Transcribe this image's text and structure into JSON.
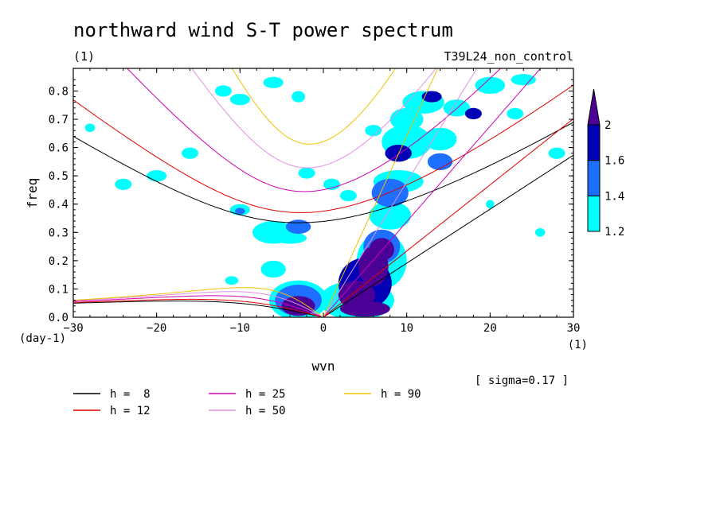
{
  "chart_data": {
    "type": "heatmap",
    "title": "northward wind S-T power spectrum",
    "subtitle_left": "(1)",
    "subtitle_right": "T39L24_non_control",
    "xlabel": "wvn",
    "ylabel": "freq",
    "x_unit": "(1)",
    "y_unit": "(day-1)",
    "xlim": [
      -30,
      30
    ],
    "ylim": [
      0,
      0.88
    ],
    "xticks": [
      -30,
      -20,
      -10,
      0,
      10,
      20,
      30
    ],
    "yticks": [
      0.0,
      0.1,
      0.2,
      0.3,
      0.4,
      0.5,
      0.6,
      0.7,
      0.8
    ],
    "ytick_labels": [
      "0.0",
      "0.1",
      "0.2",
      "0.3",
      "0.4",
      "0.5",
      "0.6",
      "0.7",
      "0.8"
    ],
    "note": "[ sigma=0.17 ]",
    "colorbar": {
      "levels": [
        1.2,
        1.4,
        1.6,
        2
      ],
      "labels": [
        "1.2",
        "1.4",
        "1.6",
        "2"
      ],
      "colors": [
        "#00ffff",
        "#1e6eff",
        "#0000b4",
        "#4b0096"
      ]
    },
    "dispersion_curves": [
      {
        "label": "h =  8",
        "h": 8,
        "color": "#000000"
      },
      {
        "label": "h = 12",
        "h": 12,
        "color": "#e00000"
      },
      {
        "label": "h = 25",
        "h": 25,
        "color": "#d000b0"
      },
      {
        "label": "h = 50",
        "h": 50,
        "color": "#e090e0"
      },
      {
        "label": "h = 90",
        "h": 90,
        "color": "#f0c000"
      }
    ],
    "contour_blobs": [
      {
        "x": 5,
        "y": 0.03,
        "rx": 3.0,
        "ry": 0.028,
        "level": 3
      },
      {
        "x": 4,
        "y": 0.08,
        "rx": 2.2,
        "ry": 0.05,
        "level": 3
      },
      {
        "x": 6,
        "y": 0.18,
        "rx": 1.8,
        "ry": 0.07,
        "level": 3
      },
      {
        "x": 7,
        "y": 0.24,
        "rx": 1.5,
        "ry": 0.04,
        "level": 3
      },
      {
        "x": 5,
        "y": 0.12,
        "rx": 3.2,
        "ry": 0.09,
        "level": 2
      },
      {
        "x": 7,
        "y": 0.25,
        "rx": 2.2,
        "ry": 0.06,
        "level": 1
      },
      {
        "x": 4,
        "y": 0.06,
        "rx": 4.5,
        "ry": 0.07,
        "level": 0
      },
      {
        "x": 7,
        "y": 0.2,
        "rx": 3.0,
        "ry": 0.1,
        "level": 0
      },
      {
        "x": -3,
        "y": 0.04,
        "rx": 2.0,
        "ry": 0.035,
        "level": 3
      },
      {
        "x": -3,
        "y": 0.06,
        "rx": 2.8,
        "ry": 0.055,
        "level": 1
      },
      {
        "x": -3,
        "y": 0.06,
        "rx": 3.5,
        "ry": 0.07,
        "level": 0
      },
      {
        "x": 8,
        "y": 0.36,
        "rx": 2.5,
        "ry": 0.05,
        "level": 0
      },
      {
        "x": 8,
        "y": 0.44,
        "rx": 2.2,
        "ry": 0.05,
        "level": 1
      },
      {
        "x": 9,
        "y": 0.48,
        "rx": 3.0,
        "ry": 0.04,
        "level": 0
      },
      {
        "x": 9,
        "y": 0.58,
        "rx": 1.6,
        "ry": 0.03,
        "level": 2
      },
      {
        "x": 10,
        "y": 0.62,
        "rx": 3.0,
        "ry": 0.06,
        "level": 0
      },
      {
        "x": 10,
        "y": 0.7,
        "rx": 2.0,
        "ry": 0.04,
        "level": 0
      },
      {
        "x": 12,
        "y": 0.76,
        "rx": 2.5,
        "ry": 0.04,
        "level": 0
      },
      {
        "x": 13,
        "y": 0.78,
        "rx": 1.2,
        "ry": 0.02,
        "level": 2
      },
      {
        "x": 14,
        "y": 0.63,
        "rx": 2.0,
        "ry": 0.04,
        "level": 0
      },
      {
        "x": 14,
        "y": 0.55,
        "rx": 1.5,
        "ry": 0.03,
        "level": 1
      },
      {
        "x": 16,
        "y": 0.74,
        "rx": 1.6,
        "ry": 0.03,
        "level": 0
      },
      {
        "x": 18,
        "y": 0.72,
        "rx": 1.0,
        "ry": 0.02,
        "level": 2
      },
      {
        "x": 20,
        "y": 0.82,
        "rx": 1.8,
        "ry": 0.03,
        "level": 0
      },
      {
        "x": 23,
        "y": 0.72,
        "rx": 1.0,
        "ry": 0.02,
        "level": 0
      },
      {
        "x": -6,
        "y": 0.3,
        "rx": 2.5,
        "ry": 0.04,
        "level": 0
      },
      {
        "x": -3,
        "y": 0.32,
        "rx": 1.5,
        "ry": 0.025,
        "level": 1
      },
      {
        "x": -4,
        "y": 0.28,
        "rx": 2.0,
        "ry": 0.02,
        "level": 0
      },
      {
        "x": -10,
        "y": 0.38,
        "rx": 1.2,
        "ry": 0.02,
        "level": 0
      },
      {
        "x": -10,
        "y": 0.375,
        "rx": 0.6,
        "ry": 0.012,
        "level": 1
      },
      {
        "x": -6,
        "y": 0.17,
        "rx": 1.5,
        "ry": 0.03,
        "level": 0
      },
      {
        "x": 1,
        "y": 0.47,
        "rx": 1.0,
        "ry": 0.02,
        "level": 0
      },
      {
        "x": -2,
        "y": 0.51,
        "rx": 1.0,
        "ry": 0.02,
        "level": 0
      },
      {
        "x": -12,
        "y": 0.8,
        "rx": 1.0,
        "ry": 0.02,
        "level": 0
      },
      {
        "x": -10,
        "y": 0.77,
        "rx": 1.2,
        "ry": 0.02,
        "level": 0
      },
      {
        "x": -3,
        "y": 0.78,
        "rx": 0.8,
        "ry": 0.02,
        "level": 0
      },
      {
        "x": -16,
        "y": 0.58,
        "rx": 1.0,
        "ry": 0.02,
        "level": 0
      },
      {
        "x": -20,
        "y": 0.5,
        "rx": 1.2,
        "ry": 0.02,
        "level": 0
      },
      {
        "x": -24,
        "y": 0.47,
        "rx": 1.0,
        "ry": 0.02,
        "level": 0
      },
      {
        "x": -6,
        "y": 0.83,
        "rx": 1.2,
        "ry": 0.02,
        "level": 0
      },
      {
        "x": 28,
        "y": 0.58,
        "rx": 1.0,
        "ry": 0.02,
        "level": 0
      },
      {
        "x": 26,
        "y": 0.3,
        "rx": 0.6,
        "ry": 0.015,
        "level": 0
      },
      {
        "x": 20,
        "y": 0.4,
        "rx": 0.5,
        "ry": 0.015,
        "level": 0
      },
      {
        "x": -28,
        "y": 0.67,
        "rx": 0.6,
        "ry": 0.015,
        "level": 0
      },
      {
        "x": 6,
        "y": 0.66,
        "rx": 1.0,
        "ry": 0.02,
        "level": 0
      },
      {
        "x": -11,
        "y": 0.13,
        "rx": 0.8,
        "ry": 0.015,
        "level": 0
      },
      {
        "x": 24,
        "y": 0.84,
        "rx": 1.5,
        "ry": 0.02,
        "level": 0
      },
      {
        "x": 3,
        "y": 0.43,
        "rx": 1.0,
        "ry": 0.02,
        "level": 0
      }
    ]
  }
}
